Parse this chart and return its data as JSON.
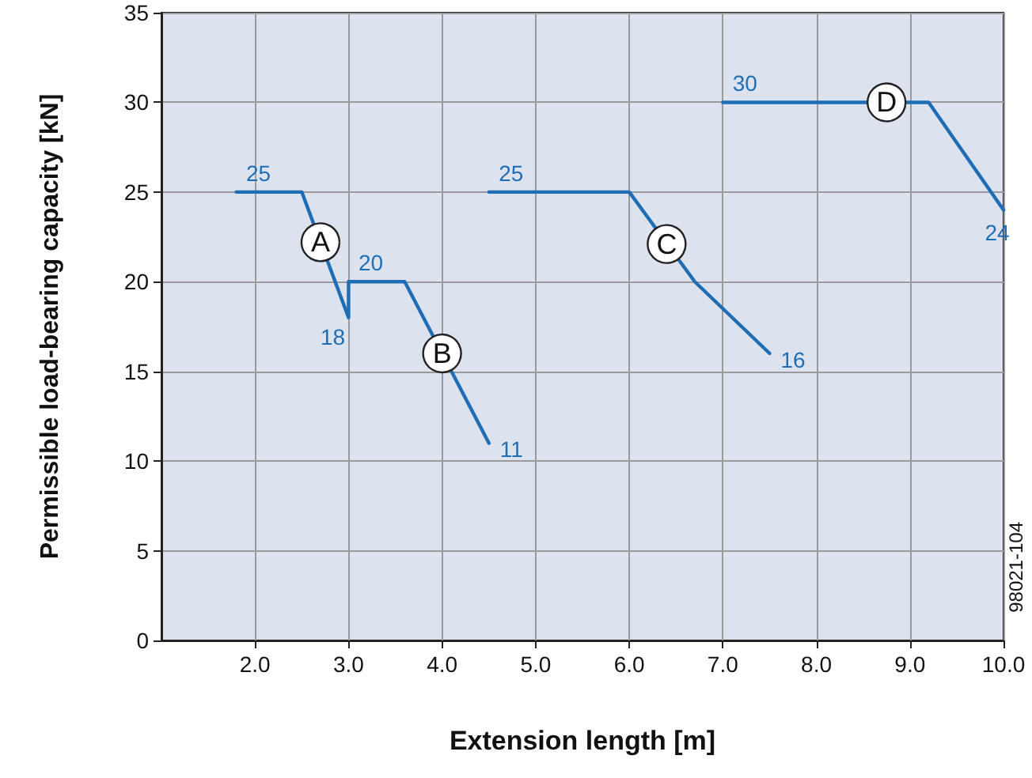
{
  "chart_data": {
    "type": "line",
    "xlabel": "Extension length [m]",
    "ylabel": "Permissible load-bearing capacity [kN]",
    "xlim": [
      1,
      10
    ],
    "xticks": [
      {
        "value": 2,
        "label": "2.0"
      },
      {
        "value": 3,
        "label": "3.0"
      },
      {
        "value": 4,
        "label": "4.0"
      },
      {
        "value": 5,
        "label": "5.0"
      },
      {
        "value": 6,
        "label": "6.0"
      },
      {
        "value": 7,
        "label": "7.0"
      },
      {
        "value": 8,
        "label": "8.0"
      },
      {
        "value": 9,
        "label": "9.0"
      },
      {
        "value": 10,
        "label": "10.0"
      }
    ],
    "ylim": [
      0,
      35
    ],
    "yticks": [
      0,
      5,
      10,
      15,
      20,
      25,
      30,
      35
    ],
    "grid": true,
    "marker": "none",
    "line_style": "solid",
    "series": [
      {
        "color": "#1f6db4",
        "x": [
          1.8,
          2.5,
          3.0,
          3.0,
          3.6,
          4.5
        ],
        "values": [
          25,
          25,
          18,
          20,
          20,
          11
        ],
        "value_labels": [
          "25",
          null,
          "18",
          "20",
          null,
          "11"
        ]
      },
      {
        "color": "#1f6db4",
        "x": [
          4.5,
          6.0,
          6.7,
          7.5
        ],
        "values": [
          25,
          25,
          20,
          16
        ],
        "value_labels": [
          "25",
          null,
          null,
          "16"
        ]
      },
      {
        "color": "#1f6db4",
        "x": [
          7.0,
          9.2,
          10.0
        ],
        "values": [
          30,
          30,
          24
        ],
        "value_labels": [
          "30",
          null,
          "24"
        ]
      }
    ],
    "annotations": [
      {
        "text": "A",
        "x": 2.7,
        "y": 22.2
      },
      {
        "text": "B",
        "x": 4.0,
        "y": 16
      },
      {
        "text": "C",
        "x": 6.4,
        "y": 22.1
      },
      {
        "text": "D",
        "x": 8.75,
        "y": 30
      },
      "98021-104"
    ]
  }
}
